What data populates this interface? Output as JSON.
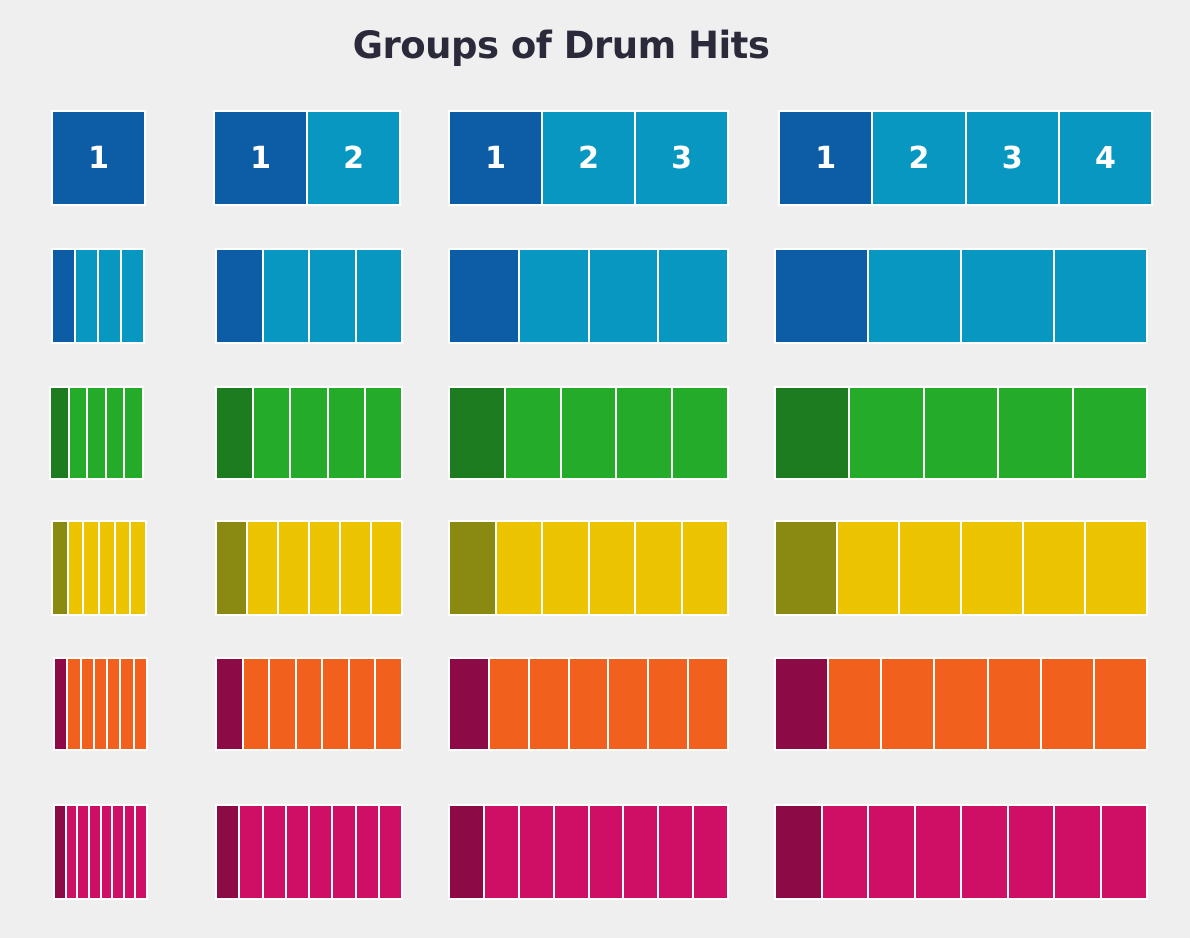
{
  "title": "Groups of Drum Hits",
  "colors": {
    "row0": {
      "accent": "#0d5ca6",
      "base": "#0797c1"
    },
    "row1": {
      "accent": "#0d5ca6",
      "base": "#0797c1"
    },
    "row2": {
      "accent": "#1c7c1f",
      "base": "#24ab2a"
    },
    "row3": {
      "accent": "#8a8a12",
      "base": "#ebc300"
    },
    "row4": {
      "accent": "#8c0a45",
      "base": "#f2601d"
    },
    "row5": {
      "accent": "#8c0a45",
      "base": "#cf0e66"
    }
  },
  "rows": [
    {
      "cells": [
        1,
        2,
        3,
        4
      ],
      "labels": [
        [
          "1"
        ],
        [
          "1",
          "2"
        ],
        [
          "1",
          "2",
          "3"
        ],
        [
          "1",
          "2",
          "3",
          "4"
        ]
      ]
    },
    {
      "cells": [
        4,
        4,
        4,
        4
      ]
    },
    {
      "cells": [
        5,
        5,
        5,
        5
      ]
    },
    {
      "cells": [
        6,
        6,
        6,
        6
      ]
    },
    {
      "cells": [
        7,
        7,
        7,
        7
      ]
    },
    {
      "cells": [
        8,
        8,
        8,
        8
      ]
    }
  ]
}
